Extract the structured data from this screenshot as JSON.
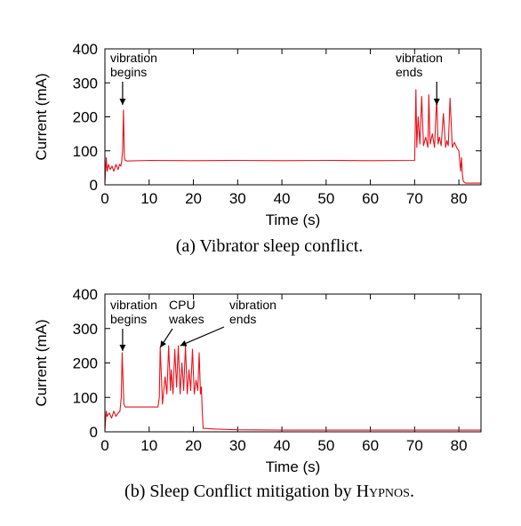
{
  "chart_data": [
    {
      "type": "line",
      "id": "a",
      "xlabel": "Time (s)",
      "ylabel": "Current (mA)",
      "xlim": [
        0,
        85
      ],
      "ylim": [
        0,
        400
      ],
      "x_ticks": [
        0,
        10,
        20,
        30,
        40,
        50,
        60,
        70,
        80
      ],
      "y_ticks": [
        0,
        100,
        200,
        300,
        400
      ],
      "grid": false,
      "color": "#e8121d",
      "caption": "(a)  Vibrator sleep conflict.",
      "annotations": [
        {
          "lines": [
            "vibration",
            "begins"
          ],
          "arrow_to": [
            4,
            235
          ]
        },
        {
          "lines": [
            "vibration",
            "ends"
          ],
          "arrow_to": [
            75,
            235
          ]
        }
      ],
      "series": [
        {
          "x": [
            0,
            0.3,
            0.5,
            0.8,
            1.2,
            1.6,
            2,
            2.5,
            3,
            3.3,
            3.6,
            3.8,
            4.0,
            4.2,
            4.4,
            4.6,
            5,
            10,
            20,
            30,
            40,
            50,
            60,
            70,
            70.3,
            70.5,
            70.8,
            71.2,
            71.6,
            72,
            72.5,
            73,
            73.2,
            73.5,
            74,
            74.5,
            75,
            75.3,
            75.6,
            76,
            76.5,
            77,
            77.3,
            77.6,
            78,
            78.5,
            79,
            79.5,
            80,
            80.2,
            80.4,
            80.6,
            80.8,
            81,
            81.5,
            85
          ],
          "y": [
            5,
            80,
            40,
            60,
            45,
            55,
            40,
            60,
            45,
            60,
            55,
            70,
            100,
            220,
            80,
            72,
            70,
            72,
            71,
            72,
            71,
            72,
            71,
            72,
            280,
            110,
            200,
            120,
            260,
            115,
            140,
            110,
            265,
            120,
            150,
            110,
            255,
            120,
            140,
            115,
            210,
            110,
            130,
            115,
            255,
            110,
            125,
            110,
            100,
            70,
            40,
            80,
            30,
            10,
            5,
            5
          ]
        }
      ]
    },
    {
      "type": "line",
      "id": "b",
      "xlabel": "Time (s)",
      "ylabel": "Current (mA)",
      "xlim": [
        0,
        85
      ],
      "ylim": [
        0,
        400
      ],
      "x_ticks": [
        0,
        10,
        20,
        30,
        40,
        50,
        60,
        70,
        80
      ],
      "y_ticks": [
        0,
        100,
        200,
        300,
        400
      ],
      "grid": false,
      "color": "#e8121d",
      "caption_prefix": "(b)  Sleep Conflict mitigation by ",
      "caption_sc": "Hypnos",
      "caption_suffix": ".",
      "annotations": [
        {
          "lines": [
            "vibration",
            "begins"
          ],
          "arrow_to": [
            4,
            235
          ]
        },
        {
          "lines": [
            "CPU",
            "wakes"
          ],
          "arrow_to": [
            12.5,
            245
          ]
        },
        {
          "lines": [
            "vibration",
            "ends"
          ],
          "arrow_to": [
            17,
            250
          ]
        }
      ],
      "series": [
        {
          "x": [
            0,
            0.3,
            0.5,
            1,
            1.5,
            2,
            2.5,
            3,
            3.4,
            3.7,
            3.9,
            4.1,
            4.3,
            4.6,
            5,
            8,
            12,
            12.3,
            12.5,
            12.8,
            13,
            13.3,
            13.6,
            14,
            14.4,
            14.8,
            15,
            15.4,
            15.8,
            16.2,
            16.6,
            17,
            17.4,
            17.8,
            18.2,
            18.6,
            19,
            19.4,
            19.8,
            20.2,
            20.6,
            21,
            21.3,
            21.6,
            21.8,
            22,
            22.2,
            25,
            30,
            40,
            50,
            60,
            70,
            80,
            85
          ],
          "y": [
            5,
            60,
            45,
            55,
            40,
            60,
            45,
            55,
            60,
            100,
            230,
            150,
            80,
            72,
            72,
            72,
            72,
            100,
            245,
            150,
            80,
            120,
            160,
            110,
            250,
            120,
            180,
            110,
            240,
            130,
            250,
            110,
            200,
            120,
            250,
            110,
            180,
            120,
            240,
            110,
            150,
            120,
            230,
            110,
            130,
            60,
            10,
            8,
            6,
            5,
            5,
            5,
            5,
            5,
            5
          ]
        }
      ]
    }
  ]
}
